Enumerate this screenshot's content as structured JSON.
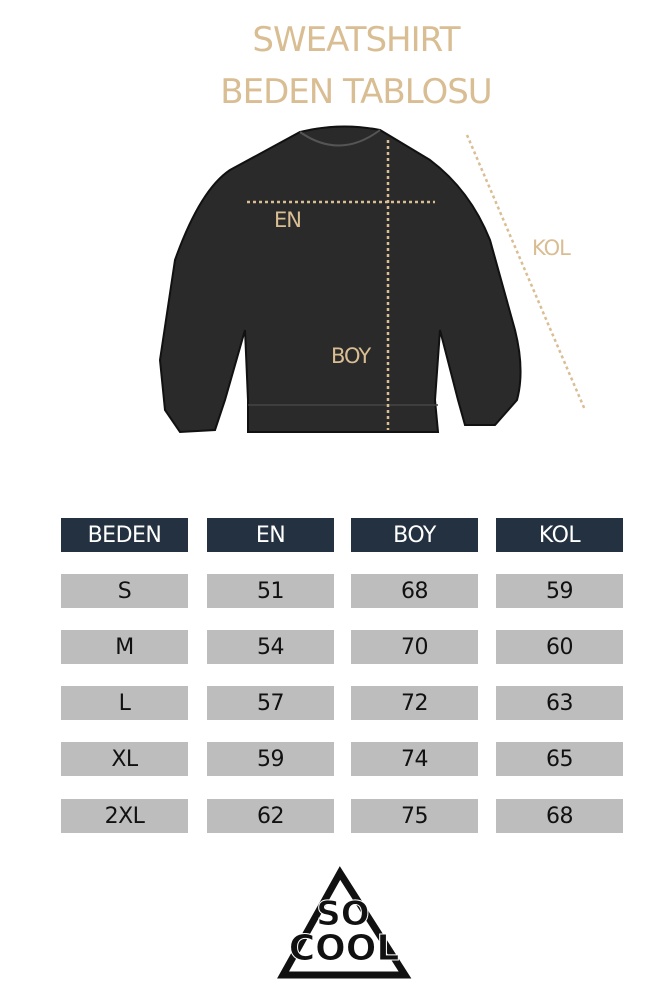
{
  "title_line1": "SWEATSHIRT",
  "title_line2": "BEDEN TABLOSU",
  "diagram_labels": {
    "en": "EN",
    "boy": "BOY",
    "kol": "KOL"
  },
  "accent_color": "#d9bd93",
  "header_color": "#233140",
  "table": {
    "headers": [
      "BEDEN",
      "EN",
      "BOY",
      "KOL"
    ],
    "rows": [
      [
        "S",
        "51",
        "68",
        "59"
      ],
      [
        "M",
        "54",
        "70",
        "60"
      ],
      [
        "L",
        "57",
        "72",
        "63"
      ],
      [
        "XL",
        "59",
        "74",
        "65"
      ],
      [
        "2XL",
        "62",
        "75",
        "68"
      ]
    ]
  },
  "logo_text": "SO COOL"
}
